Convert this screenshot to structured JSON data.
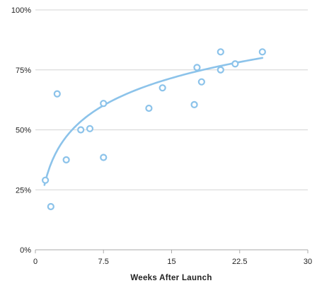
{
  "chart_data": {
    "type": "scatter",
    "xlabel": "Weeks After Launch",
    "ylabel": "",
    "xlim": [
      0,
      30
    ],
    "ylim": [
      0,
      100
    ],
    "x_ticks": [
      0,
      7.5,
      15,
      22.5,
      30
    ],
    "x_tick_labels": [
      "0",
      "7.5",
      "15",
      "22.5",
      "30"
    ],
    "y_ticks": [
      0,
      25,
      50,
      75,
      100
    ],
    "y_tick_labels": [
      "0%",
      "25%",
      "50%",
      "75%",
      "100%"
    ],
    "grid": "horizontal",
    "legend": "none",
    "points": [
      {
        "x": 1.1,
        "y": 29
      },
      {
        "x": 1.7,
        "y": 18
      },
      {
        "x": 2.4,
        "y": 65
      },
      {
        "x": 3.4,
        "y": 37.5
      },
      {
        "x": 5.0,
        "y": 50
      },
      {
        "x": 6.0,
        "y": 50.5
      },
      {
        "x": 7.5,
        "y": 61
      },
      {
        "x": 7.5,
        "y": 38.5
      },
      {
        "x": 12.5,
        "y": 59
      },
      {
        "x": 14.0,
        "y": 67.5
      },
      {
        "x": 17.5,
        "y": 60.5
      },
      {
        "x": 17.8,
        "y": 76
      },
      {
        "x": 18.3,
        "y": 70
      },
      {
        "x": 20.4,
        "y": 82.5
      },
      {
        "x": 20.4,
        "y": 75
      },
      {
        "x": 22.0,
        "y": 77.5
      },
      {
        "x": 25.0,
        "y": 82.5
      }
    ],
    "trendline": {
      "type": "logarithmic",
      "x_start": 1.0,
      "x_end": 25.0,
      "y_start": 27,
      "y_end": 80
    },
    "colors": {
      "marker": "#8cc3ea",
      "trendline": "#8cc3ea",
      "grid": "#d4d4d4",
      "axis": "#aaaaaa",
      "text": "#222222"
    }
  }
}
